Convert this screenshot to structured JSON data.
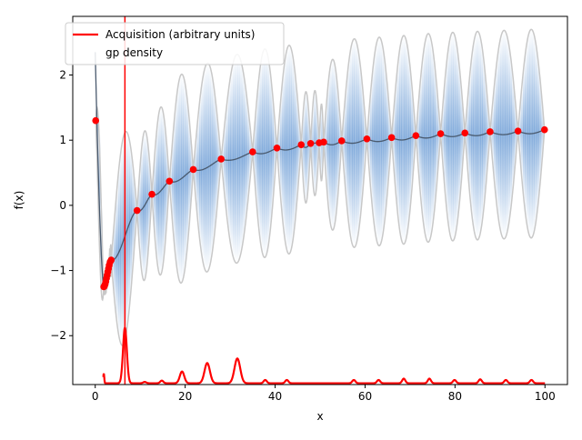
{
  "chart_data": {
    "type": "line",
    "title": "",
    "xlabel": "x",
    "ylabel": "f(x)",
    "xlim": [
      -5,
      105
    ],
    "ylim": [
      -2.75,
      2.9
    ],
    "xticks": [
      0,
      20,
      40,
      60,
      80,
      100
    ],
    "xtick_labels": [
      "0",
      "20",
      "40",
      "60",
      "80",
      "100"
    ],
    "yticks": [
      2,
      1,
      0,
      -1,
      -2
    ],
    "ytick_labels": [
      "2",
      "1",
      "0",
      "−1",
      "−2"
    ],
    "grid": false,
    "legend": {
      "placement": "top-left",
      "entries": [
        "Acquisition (arbitrary units)",
        "gp density"
      ]
    },
    "series": [
      {
        "name": "Acquisition (arbitrary units)",
        "color": "#ff0000",
        "kind": "line",
        "baseline": -2.73,
        "peaks": [
          {
            "x": 1.9,
            "height": 0.15,
            "width": 0.15
          },
          {
            "x": 6.6,
            "height": 0.85,
            "width": 0.6
          },
          {
            "x": 11.0,
            "height": 0.02,
            "width": 0.5
          },
          {
            "x": 14.8,
            "height": 0.04,
            "width": 0.5
          },
          {
            "x": 19.3,
            "height": 0.18,
            "width": 0.7
          },
          {
            "x": 24.9,
            "height": 0.31,
            "width": 0.85
          },
          {
            "x": 31.6,
            "height": 0.38,
            "width": 0.9
          },
          {
            "x": 37.8,
            "height": 0.05,
            "width": 0.5
          },
          {
            "x": 42.6,
            "height": 0.05,
            "width": 0.5
          },
          {
            "x": 57.5,
            "height": 0.05,
            "width": 0.5
          },
          {
            "x": 63.0,
            "height": 0.05,
            "width": 0.5
          },
          {
            "x": 68.6,
            "height": 0.07,
            "width": 0.5
          },
          {
            "x": 74.3,
            "height": 0.07,
            "width": 0.5
          },
          {
            "x": 79.9,
            "height": 0.05,
            "width": 0.5
          },
          {
            "x": 85.6,
            "height": 0.06,
            "width": 0.5
          },
          {
            "x": 91.3,
            "height": 0.05,
            "width": 0.5
          },
          {
            "x": 97.0,
            "height": 0.05,
            "width": 0.5
          }
        ]
      }
    ],
    "next_point_x": 6.6,
    "observations": {
      "color": "#ff0000",
      "x": [
        0.1,
        1.9,
        2.05,
        2.2,
        2.35,
        2.5,
        2.65,
        2.8,
        2.95,
        3.1,
        3.3,
        3.55,
        9.3,
        12.6,
        16.5,
        21.8,
        28.0,
        35.0,
        40.4,
        45.8,
        47.9,
        49.8,
        50.8,
        54.8,
        60.4,
        65.9,
        71.3,
        76.8,
        82.2,
        87.8,
        94.0,
        99.9
      ],
      "y": [
        1.3,
        -1.25,
        -1.24,
        -1.21,
        -1.17,
        -1.12,
        -1.07,
        -1.02,
        -0.97,
        -0.92,
        -0.87,
        -0.84,
        -0.08,
        0.17,
        0.37,
        0.55,
        0.71,
        0.82,
        0.88,
        0.93,
        0.95,
        0.96,
        0.97,
        0.99,
        1.02,
        1.04,
        1.07,
        1.1,
        1.11,
        1.13,
        1.14,
        1.16
      ]
    },
    "gp_mean_color": "#4a5a6e",
    "gp_band_color": "#c8c8c8",
    "gp_density_color": "#3d7dc8"
  }
}
